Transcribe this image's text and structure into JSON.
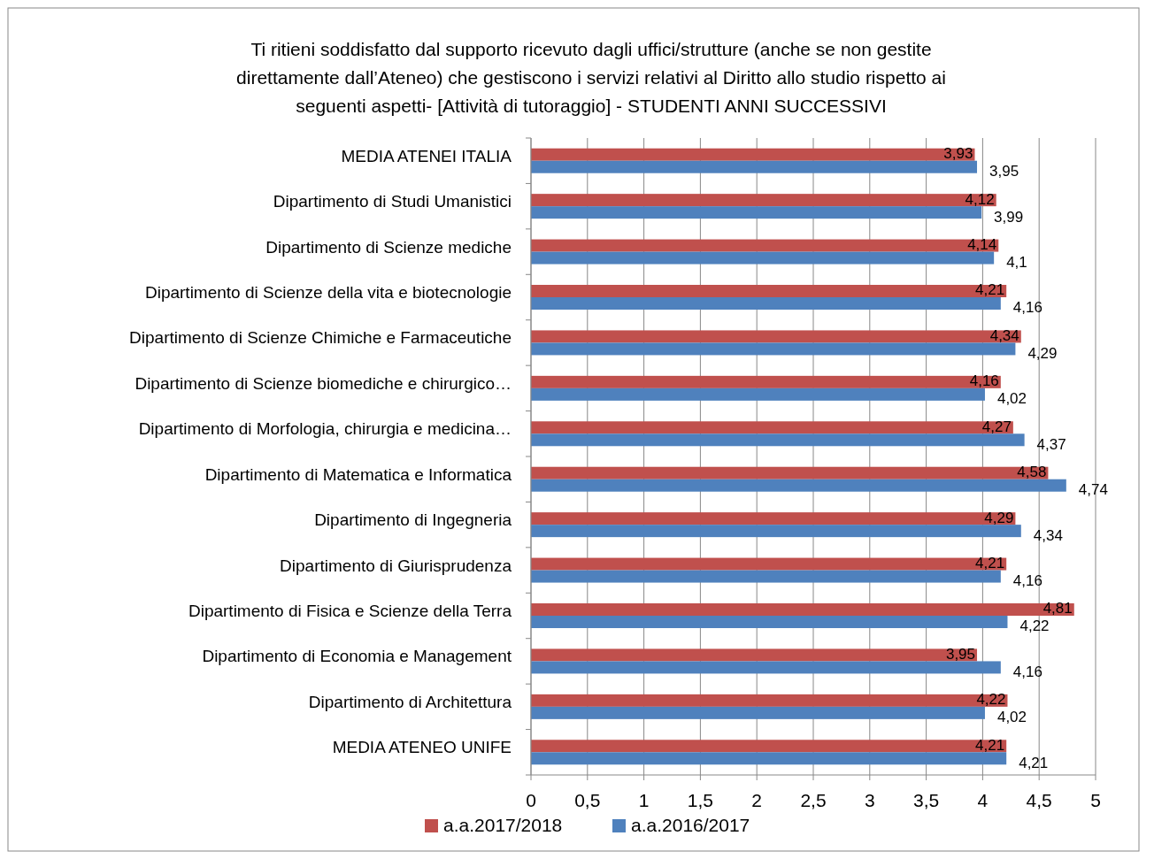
{
  "chart_data": {
    "type": "bar",
    "orientation": "horizontal",
    "title": "Ti ritieni soddisfatto dal supporto ricevuto dagli uffici/strutture (anche se non gestite direttamente dall’Ateneo) che gestiscono i servizi relativi al Diritto allo studio rispetto ai seguenti aspetti- [Attività di tutoraggio] - STUDENTI ANNI SUCCESSIVI",
    "categories": [
      "MEDIA ATENEI ITALIA",
      "Dipartimento di Studi Umanistici",
      "Dipartimento di Scienze mediche",
      "Dipartimento di Scienze della vita e biotecnologie",
      "Dipartimento di Scienze Chimiche e Farmaceutiche",
      "Dipartimento di Scienze biomediche e chirurgico…",
      "Dipartimento di Morfologia, chirurgia e medicina…",
      "Dipartimento di Matematica e Informatica",
      "Dipartimento di Ingegneria",
      "Dipartimento di Giurisprudenza",
      "Dipartimento di Fisica e Scienze della Terra",
      "Dipartimento di Economia e Management",
      "Dipartimento di Architettura",
      "MEDIA ATENEO UNIFE"
    ],
    "series": [
      {
        "name": "a.a.2017/2018",
        "color": "#c0504d",
        "values": [
          3.93,
          4.12,
          4.14,
          4.21,
          4.34,
          4.16,
          4.27,
          4.58,
          4.29,
          4.21,
          4.81,
          3.95,
          4.22,
          4.21
        ],
        "value_labels": [
          "3,93",
          "4,12",
          "4,14",
          "4,21",
          "4,34",
          "4,16",
          "4,27",
          "4,58",
          "4,29",
          "4,21",
          "4,81",
          "3,95",
          "4,22",
          "4,21"
        ]
      },
      {
        "name": "a.a.2016/2017",
        "color": "#4f81bd",
        "values": [
          3.95,
          3.99,
          4.1,
          4.16,
          4.29,
          4.02,
          4.37,
          4.74,
          4.34,
          4.16,
          4.22,
          4.16,
          4.02,
          4.21
        ],
        "value_labels": [
          "3,95",
          "3,99",
          "4,1",
          "4,16",
          "4,29",
          "4,02",
          "4,37",
          "4,74",
          "4,34",
          "4,16",
          "4,22",
          "4,16",
          "4,02",
          "4,21"
        ]
      }
    ],
    "xlim": [
      0,
      5
    ],
    "xticks": [
      0,
      {
        "value": 0.5,
        "label": "0,5"
      },
      1,
      {
        "value": 1.5,
        "label": "1,5"
      },
      2,
      {
        "value": 2.5,
        "label": "2,5"
      },
      3,
      {
        "value": 3.5,
        "label": "3,5"
      },
      4,
      {
        "value": 4.5,
        "label": "4,5"
      },
      5
    ],
    "grid": "x",
    "legend": "bottom"
  }
}
